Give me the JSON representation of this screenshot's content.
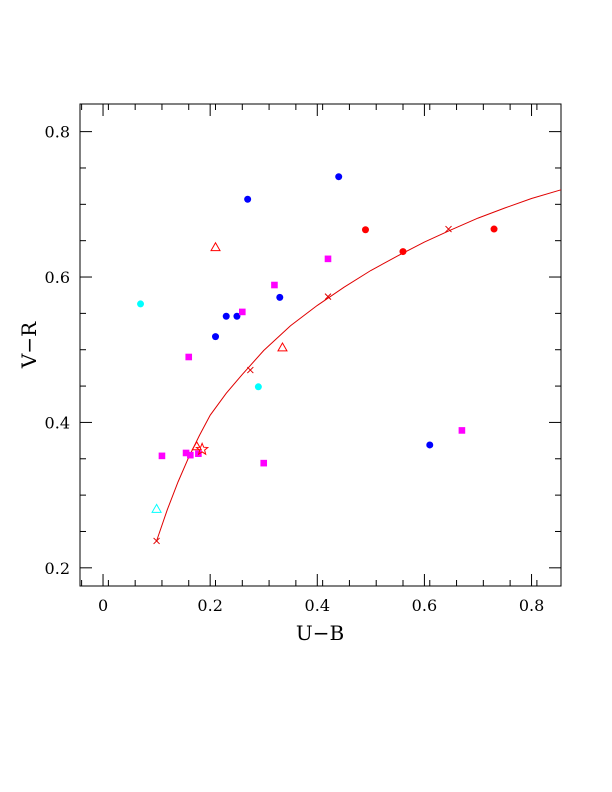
{
  "chart_data": {
    "type": "scatter",
    "xlabel": "U−B",
    "ylabel": "V−R",
    "xlim": [
      -0.043,
      0.855
    ],
    "ylim": [
      0.175,
      0.838
    ],
    "xticks": [
      {
        "value": 0,
        "label": "0"
      },
      {
        "value": 0.2,
        "label": "0.2"
      },
      {
        "value": 0.4,
        "label": "0.4"
      },
      {
        "value": 0.6,
        "label": "0.6"
      },
      {
        "value": 0.8,
        "label": "0.8"
      }
    ],
    "yticks": [
      {
        "value": 0.2,
        "label": "0.2"
      },
      {
        "value": 0.4,
        "label": "0.4"
      },
      {
        "value": 0.6,
        "label": "0.6"
      },
      {
        "value": 0.8,
        "label": "0.8"
      }
    ],
    "grid": false,
    "colors": {
      "blue": "#0000ff",
      "red": "#ff0000",
      "cyan": "#00ffff",
      "magenta": "#ff00ff",
      "curve": "#e00000"
    },
    "series": [
      {
        "marker": "circle",
        "color": "#0000ff",
        "points": [
          {
            "x": 0.21,
            "y": 0.518
          },
          {
            "x": 0.23,
            "y": 0.546
          },
          {
            "x": 0.25,
            "y": 0.546
          },
          {
            "x": 0.27,
            "y": 0.707
          },
          {
            "x": 0.33,
            "y": 0.572
          },
          {
            "x": 0.44,
            "y": 0.738
          },
          {
            "x": 0.61,
            "y": 0.369
          }
        ]
      },
      {
        "marker": "circle",
        "color": "#ff0000",
        "points": [
          {
            "x": 0.49,
            "y": 0.665
          },
          {
            "x": 0.56,
            "y": 0.635
          },
          {
            "x": 0.73,
            "y": 0.666
          }
        ]
      },
      {
        "marker": "circle",
        "color": "#00ffff",
        "points": [
          {
            "x": 0.07,
            "y": 0.563
          },
          {
            "x": 0.29,
            "y": 0.449
          }
        ]
      },
      {
        "marker": "square",
        "color": "#ff00ff",
        "points": [
          {
            "x": 0.11,
            "y": 0.354
          },
          {
            "x": 0.155,
            "y": 0.358
          },
          {
            "x": 0.16,
            "y": 0.49
          },
          {
            "x": 0.163,
            "y": 0.355
          },
          {
            "x": 0.178,
            "y": 0.357
          },
          {
            "x": 0.26,
            "y": 0.552
          },
          {
            "x": 0.3,
            "y": 0.344
          },
          {
            "x": 0.32,
            "y": 0.589
          },
          {
            "x": 0.42,
            "y": 0.625
          },
          {
            "x": 0.67,
            "y": 0.389
          }
        ]
      },
      {
        "marker": "triangle-open",
        "color": "#ff0000",
        "points": [
          {
            "x": 0.21,
            "y": 0.641
          },
          {
            "x": 0.335,
            "y": 0.503
          },
          {
            "x": 0.175,
            "y": 0.367
          }
        ]
      },
      {
        "marker": "triangle-open",
        "color": "#00ffff",
        "points": [
          {
            "x": 0.1,
            "y": 0.281
          }
        ]
      },
      {
        "marker": "star-open",
        "color": "#ff0000",
        "points": [
          {
            "x": 0.185,
            "y": 0.363
          }
        ]
      }
    ],
    "curve": {
      "color": "#e00000",
      "points": [
        {
          "x": 0.1,
          "y": 0.237
        },
        {
          "x": 0.12,
          "y": 0.28
        },
        {
          "x": 0.14,
          "y": 0.318
        },
        {
          "x": 0.16,
          "y": 0.352
        },
        {
          "x": 0.18,
          "y": 0.382
        },
        {
          "x": 0.2,
          "y": 0.41
        },
        {
          "x": 0.23,
          "y": 0.44
        },
        {
          "x": 0.26,
          "y": 0.466
        },
        {
          "x": 0.3,
          "y": 0.499
        },
        {
          "x": 0.35,
          "y": 0.533
        },
        {
          "x": 0.4,
          "y": 0.561
        },
        {
          "x": 0.45,
          "y": 0.586
        },
        {
          "x": 0.5,
          "y": 0.609
        },
        {
          "x": 0.55,
          "y": 0.629
        },
        {
          "x": 0.6,
          "y": 0.648
        },
        {
          "x": 0.65,
          "y": 0.665
        },
        {
          "x": 0.7,
          "y": 0.681
        },
        {
          "x": 0.75,
          "y": 0.695
        },
        {
          "x": 0.8,
          "y": 0.708
        },
        {
          "x": 0.855,
          "y": 0.72
        }
      ],
      "x_markers": [
        {
          "x": 0.1,
          "y": 0.237
        },
        {
          "x": 0.275,
          "y": 0.472
        },
        {
          "x": 0.42,
          "y": 0.573
        },
        {
          "x": 0.645,
          "y": 0.666
        }
      ]
    }
  }
}
